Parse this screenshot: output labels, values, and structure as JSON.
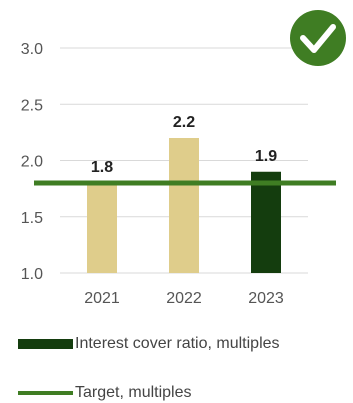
{
  "chart_data": {
    "type": "bar",
    "categories": [
      "2021",
      "2022",
      "2023"
    ],
    "values": [
      1.8,
      2.2,
      1.9
    ],
    "data_labels": [
      "1.8",
      "2.2",
      "1.9"
    ],
    "target": 1.8,
    "ylim": [
      1.0,
      3.0
    ],
    "yticks": [
      1.0,
      1.5,
      2.0,
      2.5,
      3.0
    ],
    "ytick_labels": [
      "1.0",
      "1.5",
      "2.0",
      "2.5",
      "3.0"
    ],
    "bar_colors": [
      "#dfcd8b",
      "#dfcd8b",
      "#143d0e"
    ],
    "target_color": "#3f7d23",
    "grid": true,
    "series": [
      {
        "name": "Interest cover ratio, multiples",
        "values": [
          1.8,
          2.2,
          1.9
        ]
      },
      {
        "name": "Target, multiples",
        "values": [
          1.8,
          1.8,
          1.8
        ]
      }
    ],
    "legend_position": "bottom-left"
  },
  "badge": {
    "icon": "checkmark-icon",
    "color": "#3f7d23"
  }
}
